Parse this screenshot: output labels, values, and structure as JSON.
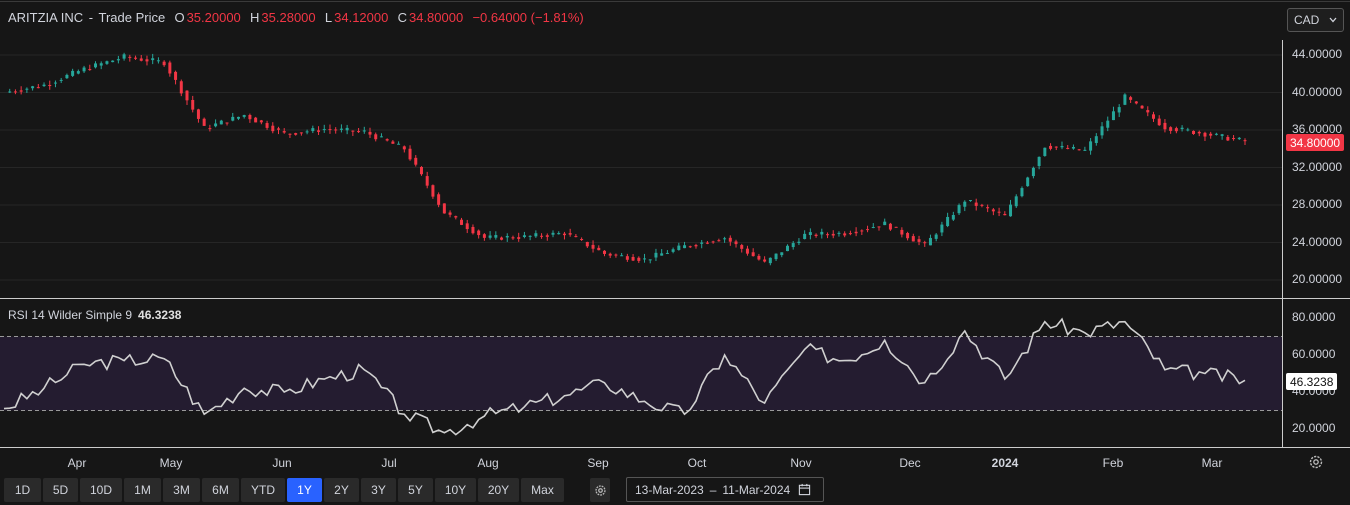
{
  "header": {
    "symbol": "ARITZIA INC",
    "separator": "-",
    "series_name": "Trade Price",
    "o_label": "O",
    "o_value": "35.20000",
    "h_label": "H",
    "h_value": "35.28000",
    "l_label": "L",
    "l_value": "34.12000",
    "c_label": "C",
    "c_value": "34.80000",
    "change": "−0.64000 (−1.81%)"
  },
  "currency_select": {
    "value": "CAD"
  },
  "last_price_tag": "34.80000",
  "price_axis": [
    "44.00000",
    "40.00000",
    "36.00000",
    "32.00000",
    "28.00000",
    "24.00000",
    "20.00000"
  ],
  "rsi": {
    "label": "RSI 14 Wilder Simple 9",
    "value": "46.3238",
    "axis": [
      "80.0000",
      "60.0000",
      "40.0000",
      "20.0000"
    ]
  },
  "x_axis": [
    {
      "label": "Apr",
      "bold": false
    },
    {
      "label": "May",
      "bold": false
    },
    {
      "label": "Jun",
      "bold": false
    },
    {
      "label": "Jul",
      "bold": false
    },
    {
      "label": "Aug",
      "bold": false
    },
    {
      "label": "Sep",
      "bold": false
    },
    {
      "label": "Oct",
      "bold": false
    },
    {
      "label": "Nov",
      "bold": false
    },
    {
      "label": "Dec",
      "bold": false
    },
    {
      "label": "2024",
      "bold": true
    },
    {
      "label": "Feb",
      "bold": false
    },
    {
      "label": "Mar",
      "bold": false
    }
  ],
  "ranges": [
    "1D",
    "5D",
    "10D",
    "1M",
    "3M",
    "6M",
    "YTD",
    "1Y",
    "2Y",
    "3Y",
    "5Y",
    "10Y",
    "20Y",
    "Max"
  ],
  "active_range": "1Y",
  "date_range": {
    "start": "13-Mar-2023",
    "sep": "–",
    "end": "11-Mar-2024"
  },
  "icons": {
    "settings": "gear-icon",
    "calendar": "calendar-icon",
    "dropdown": "chevron-down-icon"
  },
  "colors": {
    "up": "#26a69a",
    "down": "#f23645",
    "rsi_line": "#d0d0d0",
    "active": "#2962ff"
  },
  "chart_data": [
    {
      "type": "candlestick",
      "title": "ARITZIA INC - Trade Price",
      "ylim": [
        18,
        46
      ],
      "x": [
        "Mar-13",
        "Mar-27",
        "Apr-10",
        "Apr-24",
        "May-01",
        "May-08",
        "May-22",
        "Jun-05",
        "Jun-19",
        "Jul-03",
        "Jul-10",
        "Jul-17",
        "Jul-31",
        "Aug-14",
        "Aug-28",
        "Sep-11",
        "Sep-25",
        "Oct-02",
        "Oct-16",
        "Oct-30",
        "Nov-06",
        "Nov-20",
        "Dec-04",
        "Dec-18",
        "Jan-02",
        "Jan-08",
        "Jan-15",
        "Jan-29",
        "Feb-05",
        "Feb-12",
        "Feb-26",
        "Mar-11"
      ],
      "close": [
        40.0,
        40.8,
        42.5,
        43.8,
        43.2,
        36.2,
        37.6,
        35.6,
        36.1,
        35.8,
        34.0,
        27.2,
        24.5,
        24.6,
        25.0,
        22.8,
        22.2,
        23.6,
        24.5,
        21.8,
        24.8,
        25.0,
        26.0,
        23.7,
        28.5,
        26.8,
        34.3,
        33.8,
        39.5,
        36.3,
        35.6,
        34.8
      ]
    },
    {
      "type": "line",
      "title": "RSI 14 Wilder Simple 9",
      "ylim": [
        10,
        90
      ],
      "x": [
        "Mar-13",
        "Mar-27",
        "Apr-10",
        "Apr-24",
        "May-01",
        "May-08",
        "May-22",
        "Jun-05",
        "Jun-19",
        "Jul-03",
        "Jul-10",
        "Jul-17",
        "Jul-31",
        "Aug-14",
        "Aug-28",
        "Sep-11",
        "Sep-25",
        "Oct-02",
        "Oct-16",
        "Oct-30",
        "Nov-06",
        "Nov-20",
        "Dec-04",
        "Dec-18",
        "Jan-02",
        "Jan-08",
        "Jan-15",
        "Jan-29",
        "Feb-05",
        "Feb-12",
        "Feb-26",
        "Mar-11"
      ],
      "values": [
        31,
        42,
        55,
        57,
        58,
        28,
        42,
        40,
        47,
        52,
        28,
        18,
        27,
        32,
        38,
        45,
        35,
        28,
        60,
        34,
        63,
        57,
        68,
        45,
        73,
        47,
        78,
        72,
        78,
        52,
        50,
        46.3
      ],
      "overbought": 70,
      "oversold": 30
    }
  ]
}
